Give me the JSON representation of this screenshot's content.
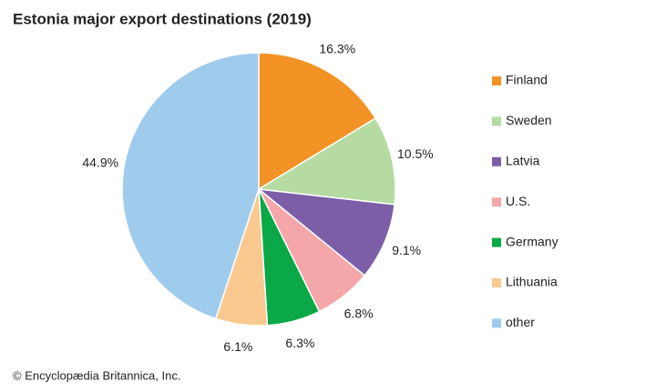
{
  "chart_data": {
    "type": "pie",
    "title": "Estonia major export destinations (2019)",
    "categories": [
      "Finland",
      "Sweden",
      "Latvia",
      "U.S.",
      "Germany",
      "Lithuania",
      "other"
    ],
    "values": [
      16.3,
      10.5,
      9.1,
      6.8,
      6.3,
      6.1,
      44.9
    ],
    "value_labels": [
      "16.3%",
      "10.5%",
      "9.1%",
      "6.8%",
      "6.3%",
      "6.1%",
      "44.9%"
    ],
    "colors": [
      "#f39325",
      "#b5dba3",
      "#7b5ea7",
      "#f4a6a8",
      "#0aa846",
      "#f9c98f",
      "#9fcbed"
    ],
    "legend": "right",
    "source": "© Encyclopædia Britannica, Inc."
  }
}
